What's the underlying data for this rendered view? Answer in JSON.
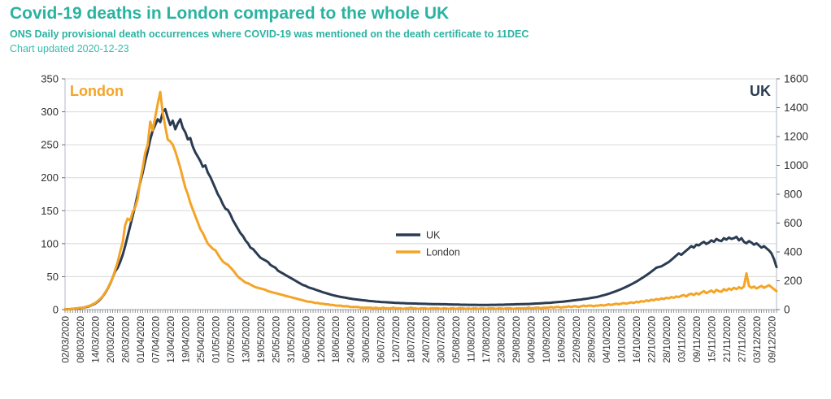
{
  "header": {
    "title": "Covid-19 deaths in London compared to the whole UK",
    "subtitle": "ONS Daily provisional death occurrences where COVID-19 was mentioned on the death certificate to 11DEC",
    "updated": "Chart updated 2020-12-23"
  },
  "colors": {
    "title_teal": "#2ab3a1",
    "uk_navy": "#2b3c52",
    "london_orange": "#f4a427",
    "gridline": "#d8d8d8",
    "axis_line": "#b0bac9",
    "axis_text": "#303030",
    "tick_comb": "#707070"
  },
  "chart_data": {
    "type": "line",
    "n_days": 285,
    "x_start": "02/03/2020",
    "x_end": "11/12/2020",
    "x_tick_step_days": 6,
    "grid": "horizontal",
    "x_tick_labels": [
      "02/03/2020",
      "08/03/2020",
      "14/03/2020",
      "20/03/2020",
      "26/03/2020",
      "01/04/2020",
      "07/04/2020",
      "13/04/2020",
      "19/04/2020",
      "25/04/2020",
      "01/05/2020",
      "07/05/2020",
      "13/05/2020",
      "19/05/2020",
      "25/05/2020",
      "31/05/2020",
      "06/06/2020",
      "12/06/2020",
      "18/06/2020",
      "24/06/2020",
      "30/06/2020",
      "06/07/2020",
      "12/07/2020",
      "18/07/2020",
      "24/07/2020",
      "30/07/2020",
      "05/08/2020",
      "11/08/2020",
      "17/08/2020",
      "23/08/2020",
      "29/08/2020",
      "04/09/2020",
      "10/09/2020",
      "16/09/2020",
      "22/09/2020",
      "28/09/2020",
      "04/10/2020",
      "10/10/2020",
      "16/10/2020",
      "22/10/2020",
      "28/10/2020",
      "03/11/2020",
      "09/11/2020",
      "15/11/2020",
      "21/11/2020",
      "27/11/2020",
      "03/12/2020",
      "09/12/2020"
    ],
    "axes": {
      "left": {
        "label": "London",
        "min": 0,
        "max": 350,
        "ticks": [
          350,
          300,
          250,
          200,
          150,
          100,
          50,
          0
        ]
      },
      "right": {
        "label": "UK",
        "min": 0,
        "max": 1600,
        "ticks": [
          1600,
          1400,
          1200,
          1000,
          800,
          600,
          400,
          200,
          0
        ]
      }
    },
    "legend": {
      "position": "plot-center",
      "entries": [
        "UK",
        "London"
      ]
    },
    "series": [
      {
        "name": "UK",
        "axis": "right",
        "color": "#2b3c52",
        "values": [
          2,
          3,
          3,
          5,
          6,
          8,
          10,
          12,
          16,
          20,
          26,
          34,
          42,
          55,
          70,
          90,
          115,
          145,
          180,
          220,
          265,
          290,
          330,
          380,
          440,
          510,
          580,
          650,
          720,
          800,
          880,
          950,
          1030,
          1100,
          1180,
          1240,
          1280,
          1320,
          1300,
          1370,
          1390,
          1330,
          1280,
          1310,
          1250,
          1290,
          1320,
          1260,
          1230,
          1180,
          1190,
          1130,
          1090,
          1060,
          1030,
          990,
          1000,
          950,
          920,
          880,
          840,
          800,
          770,
          730,
          700,
          690,
          660,
          620,
          590,
          560,
          530,
          510,
          480,
          460,
          430,
          420,
          400,
          380,
          360,
          350,
          340,
          330,
          310,
          300,
          290,
          270,
          260,
          250,
          240,
          230,
          220,
          210,
          200,
          190,
          180,
          170,
          165,
          155,
          150,
          145,
          138,
          132,
          126,
          120,
          115,
          110,
          105,
          100,
          96,
          92,
          88,
          85,
          82,
          79,
          76,
          73,
          71,
          69,
          67,
          65,
          63,
          61,
          59,
          58,
          56,
          55,
          53,
          52,
          51,
          50,
          49,
          48,
          47,
          46,
          45,
          45,
          44,
          43,
          43,
          42,
          42,
          41,
          41,
          40,
          40,
          39,
          39,
          38,
          38,
          38,
          37,
          37,
          37,
          36,
          36,
          35,
          35,
          35,
          34,
          34,
          34,
          33,
          33,
          33,
          33,
          32,
          32,
          32,
          32,
          32,
          33,
          33,
          33,
          34,
          34,
          34,
          35,
          35,
          36,
          36,
          37,
          37,
          38,
          38,
          39,
          39,
          40,
          41,
          42,
          43,
          44,
          45,
          46,
          47,
          48,
          50,
          51,
          53,
          54,
          56,
          58,
          60,
          62,
          64,
          66,
          68,
          70,
          73,
          75,
          78,
          81,
          84,
          87,
          90,
          95,
          100,
          105,
          110,
          116,
          122,
          128,
          135,
          142,
          150,
          158,
          166,
          175,
          184,
          194,
          204,
          215,
          226,
          238,
          250,
          263,
          276,
          290,
          295,
          300,
          310,
          320,
          330,
          345,
          360,
          375,
          390,
          380,
          395,
          410,
          425,
          440,
          430,
          450,
          445,
          460,
          470,
          455,
          465,
          480,
          470,
          490,
          480,
          475,
          495,
          485,
          500,
          490,
          495,
          505,
          480,
          495,
          470,
          460,
          475,
          465,
          450,
          460,
          445,
          430,
          440,
          425,
          410,
          390,
          350,
          295
        ]
      },
      {
        "name": "London",
        "axis": "left",
        "color": "#f4a427",
        "values": [
          1,
          0,
          1,
          1,
          2,
          2,
          3,
          2,
          4,
          5,
          6,
          8,
          10,
          13,
          16,
          20,
          26,
          32,
          40,
          48,
          60,
          72,
          88,
          102,
          128,
          138,
          135,
          148,
          155,
          168,
          195,
          215,
          238,
          250,
          285,
          272,
          292,
          312,
          330,
          298,
          278,
          258,
          255,
          250,
          240,
          228,
          215,
          200,
          185,
          175,
          162,
          152,
          142,
          132,
          122,
          116,
          108,
          100,
          96,
          92,
          90,
          84,
          78,
          73,
          70,
          68,
          64,
          60,
          55,
          50,
          47,
          44,
          41,
          40,
          38,
          36,
          34,
          33,
          32,
          31,
          30,
          28,
          27,
          26,
          25,
          24,
          23,
          22,
          21,
          20,
          19,
          18,
          17,
          16,
          15,
          14,
          13,
          12,
          12,
          11,
          10,
          10,
          9,
          9,
          8,
          8,
          7,
          7,
          6,
          6,
          6,
          5,
          5,
          5,
          4,
          4,
          4,
          4,
          3,
          3,
          3,
          3,
          3,
          2,
          3,
          2,
          2,
          3,
          2,
          2,
          2,
          3,
          2,
          2,
          2,
          1,
          2,
          2,
          3,
          2,
          2,
          1,
          2,
          2,
          2,
          1,
          2,
          2,
          2,
          2,
          1,
          2,
          2,
          1,
          2,
          2,
          1,
          2,
          2,
          2,
          1,
          2,
          1,
          2,
          2,
          1,
          2,
          2,
          1,
          2,
          2,
          2,
          1,
          2,
          2,
          1,
          2,
          2,
          2,
          1,
          2,
          2,
          2,
          2,
          2,
          3,
          2,
          2,
          3,
          3,
          2,
          3,
          3,
          3,
          4,
          3,
          4,
          4,
          3,
          4,
          4,
          5,
          4,
          5,
          5,
          4,
          5,
          6,
          5,
          6,
          6,
          5,
          6,
          6,
          7,
          6,
          7,
          8,
          7,
          8,
          9,
          8,
          9,
          10,
          9,
          10,
          11,
          10,
          12,
          11,
          13,
          12,
          14,
          13,
          15,
          14,
          16,
          15,
          17,
          16,
          18,
          17,
          19,
          18,
          20,
          19,
          21,
          22,
          20,
          23,
          24,
          22,
          25,
          23,
          26,
          28,
          25,
          27,
          29,
          26,
          30,
          28,
          27,
          31,
          29,
          32,
          30,
          33,
          31,
          34,
          32,
          35,
          55,
          36,
          33,
          35,
          32,
          34,
          36,
          33,
          35,
          37,
          34,
          31,
          28
        ]
      }
    ]
  }
}
